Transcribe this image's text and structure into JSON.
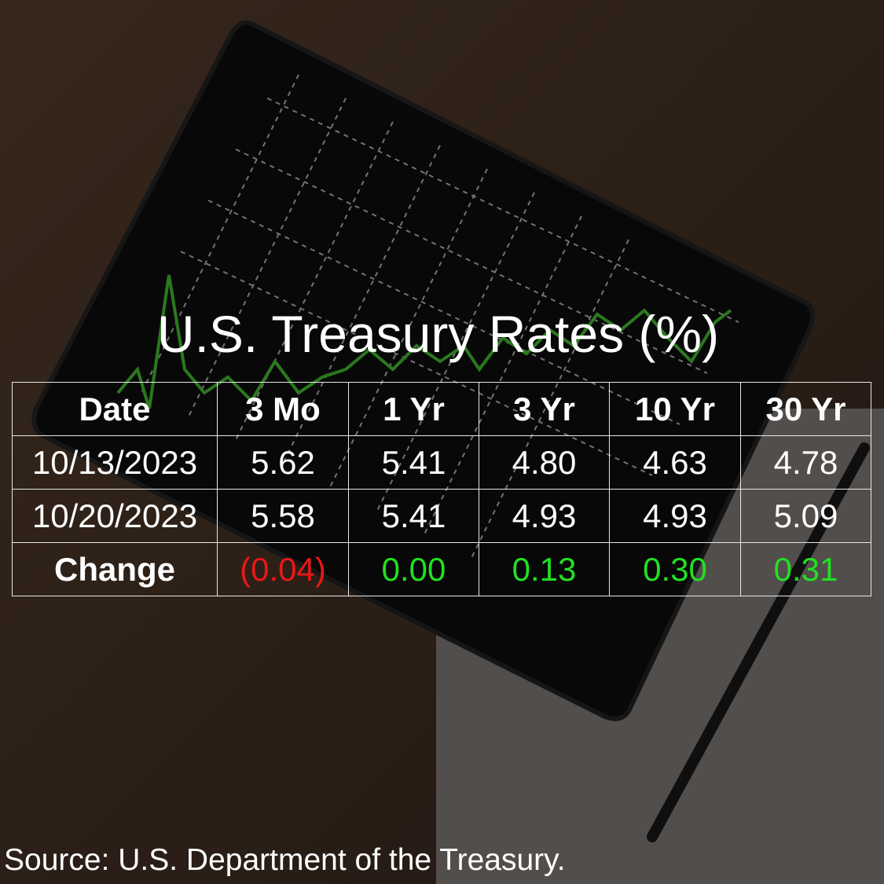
{
  "title": "U.S. Treasury Rates (%)",
  "table": {
    "header": [
      "Date",
      "3 Mo",
      "1 Yr",
      "3 Yr",
      "10 Yr",
      "30 Yr"
    ],
    "rows": [
      [
        "10/13/2023",
        "5.62",
        "5.41",
        "4.80",
        "4.63",
        "4.78"
      ],
      [
        "10/20/2023",
        "5.58",
        "5.41",
        "4.93",
        "4.93",
        "5.09"
      ],
      [
        "Change",
        "(0.04)",
        "0.00",
        "0.13",
        "0.30",
        "0.31"
      ]
    ],
    "change_colors": [
      "#e81818",
      "#22e022",
      "#22e022",
      "#22e022",
      "#22e022"
    ]
  },
  "source": "Source: U.S. Department of the Treasury."
}
